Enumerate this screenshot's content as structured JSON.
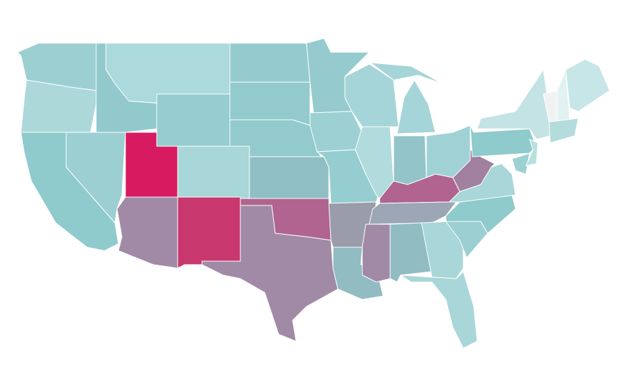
{
  "map": {
    "regions": [
      {
        "color": "#9ccfd2"
      },
      {
        "color": "#acd8da"
      },
      {
        "color": "#8fcacd"
      },
      {
        "color": "#9ccfd2"
      },
      {
        "color": "#92c9cd"
      },
      {
        "color": "#acd9db"
      },
      {
        "color": "#95cdd0"
      },
      {
        "color": "#d81b60"
      },
      {
        "color": "#a9d6d8"
      },
      {
        "color": "#a08aa6"
      },
      {
        "color": "#c8376e"
      },
      {
        "color": "#95cbce"
      },
      {
        "color": "#92cacd"
      },
      {
        "color": "#92cacd"
      },
      {
        "color": "#8fbfc5"
      },
      {
        "color": "#b0648f"
      },
      {
        "color": "#a08aa6"
      },
      {
        "color": "#95cbce"
      },
      {
        "color": "#9dd0d3"
      },
      {
        "color": "#95cdd0"
      },
      {
        "color": "#9b9ca9"
      },
      {
        "color": "#90bcc2"
      },
      {
        "color": "#a5d5d8"
      },
      {
        "color": "#b2dbdd"
      },
      {
        "color": "#a5d5d8"
      },
      {
        "color": "#a5d5d8"
      },
      {
        "color": "#92c4c9"
      },
      {
        "color": "#a0d2d5"
      },
      {
        "color": "#b0648f"
      },
      {
        "color": "#9ca6b5"
      },
      {
        "color": "#a08aa6"
      },
      {
        "color": "#90bcc2"
      },
      {
        "color": "#a9d6d8"
      },
      {
        "color": "#a9d6d8"
      },
      {
        "color": "#9ccfd2"
      },
      {
        "color": "#8fcacd"
      },
      {
        "color": "#a9d6d8"
      },
      {
        "color": "#a1809f"
      },
      {
        "color": "#8fcacd"
      },
      {
        "color": "#c3e3e4"
      },
      {
        "color": "#9dd0d3"
      },
      {
        "color": "#b9dfe0"
      },
      {
        "color": "#f0f2f2"
      },
      {
        "color": "#e2f1f1"
      },
      {
        "color": "#c6e6e7"
      },
      {
        "color": "#b4dcdd"
      }
    ]
  }
}
